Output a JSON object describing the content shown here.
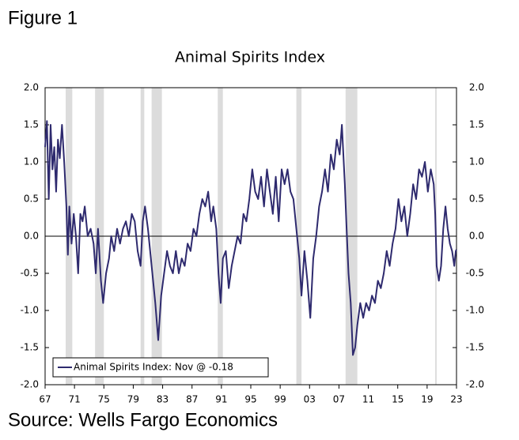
{
  "figure_label": "Figure 1",
  "source": "Source: Wells Fargo Economics",
  "chart_data": {
    "type": "line",
    "title": "Animal Spirits Index",
    "xlim": [
      1967,
      2023
    ],
    "xticks": [
      {
        "value": 1967,
        "label": "67"
      },
      {
        "value": 1971,
        "label": "71"
      },
      {
        "value": 1975,
        "label": "75"
      },
      {
        "value": 1979,
        "label": "79"
      },
      {
        "value": 1983,
        "label": "83"
      },
      {
        "value": 1987,
        "label": "87"
      },
      {
        "value": 1991,
        "label": "91"
      },
      {
        "value": 1995,
        "label": "95"
      },
      {
        "value": 1999,
        "label": "99"
      },
      {
        "value": 2003,
        "label": "03"
      },
      {
        "value": 2007,
        "label": "07"
      },
      {
        "value": 2011,
        "label": "11"
      },
      {
        "value": 2015,
        "label": "15"
      },
      {
        "value": 2019,
        "label": "19"
      },
      {
        "value": 2023,
        "label": "23"
      }
    ],
    "ylim": [
      -2,
      2
    ],
    "yticks": [
      {
        "value": 2,
        "label": "2.0"
      },
      1.5,
      {
        "value": 1,
        "label": "1.0"
      },
      0.5,
      {
        "value": 0,
        "label": "0.0"
      },
      -0.5,
      {
        "value": -1,
        "label": "-1.0"
      },
      -1.5,
      {
        "value": -2,
        "label": "-2.0"
      }
    ],
    "y2lim": [
      -2,
      2
    ],
    "y2ticks": [
      {
        "value": 2,
        "label": "2.0"
      },
      1.5,
      {
        "value": 1,
        "label": "1.0"
      },
      0.5,
      {
        "value": 0,
        "label": "0.0"
      },
      -0.5,
      {
        "value": -1,
        "label": "-1.0"
      },
      -1.5,
      {
        "value": -2,
        "label": "-2.0"
      }
    ],
    "grid": false,
    "legend": "lower-left",
    "recession_color": "#dcdcdc",
    "recessions": [
      [
        1969.8,
        1970.7
      ],
      [
        1973.8,
        1975.0
      ],
      [
        1980.0,
        1980.5
      ],
      [
        1981.5,
        1982.9
      ],
      [
        1990.5,
        1991.2
      ],
      [
        2001.2,
        2001.9
      ],
      [
        2007.9,
        2009.5
      ],
      [
        2020.1,
        2020.3
      ]
    ],
    "x": [
      1967.0,
      1967.25,
      1967.5,
      1967.75,
      1968.0,
      1968.25,
      1968.5,
      1968.75,
      1969.0,
      1969.3,
      1969.6,
      1969.9,
      1970.1,
      1970.3,
      1970.6,
      1970.9,
      1971.2,
      1971.5,
      1971.8,
      1972.1,
      1972.4,
      1972.8,
      1973.2,
      1973.6,
      1973.9,
      1974.2,
      1974.6,
      1974.9,
      1975.3,
      1975.7,
      1976.0,
      1976.4,
      1976.8,
      1977.2,
      1977.6,
      1978.0,
      1978.4,
      1978.8,
      1979.2,
      1979.6,
      1980.0,
      1980.3,
      1980.6,
      1981.0,
      1981.4,
      1981.7,
      1982.0,
      1982.4,
      1982.8,
      1983.2,
      1983.6,
      1984.0,
      1984.4,
      1984.8,
      1985.2,
      1985.6,
      1986.0,
      1986.4,
      1986.8,
      1987.2,
      1987.6,
      1988.0,
      1988.4,
      1988.8,
      1989.2,
      1989.6,
      1989.9,
      1990.3,
      1990.6,
      1990.9,
      1991.2,
      1991.6,
      1992.0,
      1992.4,
      1992.8,
      1993.2,
      1993.6,
      1994.0,
      1994.4,
      1994.8,
      1995.2,
      1995.6,
      1996.0,
      1996.4,
      1996.8,
      1997.2,
      1997.6,
      1998.0,
      1998.4,
      1998.8,
      1999.2,
      1999.6,
      2000.0,
      2000.4,
      2000.8,
      2001.2,
      2001.6,
      2001.9,
      2002.3,
      2002.7,
      2003.1,
      2003.5,
      2003.9,
      2004.3,
      2004.7,
      2005.1,
      2005.5,
      2005.9,
      2006.3,
      2006.7,
      2007.1,
      2007.4,
      2007.8,
      2008.0,
      2008.3,
      2008.6,
      2008.9,
      2009.2,
      2009.5,
      2009.9,
      2010.3,
      2010.7,
      2011.1,
      2011.5,
      2011.9,
      2012.3,
      2012.7,
      2013.1,
      2013.5,
      2013.9,
      2014.3,
      2014.7,
      2015.1,
      2015.5,
      2015.9,
      2016.3,
      2016.7,
      2017.1,
      2017.5,
      2017.9,
      2018.3,
      2018.7,
      2019.1,
      2019.5,
      2019.9,
      2020.1,
      2020.3,
      2020.6,
      2020.9,
      2021.2,
      2021.5,
      2021.8,
      2022.1,
      2022.4,
      2022.7,
      2022.9,
      2023.0
    ],
    "series": [
      {
        "name": "Animal Spirits Index: Nov @ -0.18",
        "color": "#2e2a6e",
        "values": [
          1.2,
          1.55,
          0.5,
          1.5,
          0.9,
          1.2,
          0.6,
          1.3,
          1.05,
          1.5,
          1.0,
          0.4,
          -0.25,
          0.4,
          -0.1,
          0.3,
          0.0,
          -0.5,
          0.3,
          0.2,
          0.4,
          0.0,
          0.1,
          -0.1,
          -0.5,
          0.1,
          -0.6,
          -0.9,
          -0.5,
          -0.3,
          0.0,
          -0.2,
          0.1,
          -0.1,
          0.1,
          0.2,
          0.0,
          0.3,
          0.2,
          -0.2,
          -0.4,
          0.2,
          0.4,
          0.1,
          -0.3,
          -0.6,
          -0.9,
          -1.4,
          -0.8,
          -0.5,
          -0.2,
          -0.4,
          -0.5,
          -0.2,
          -0.5,
          -0.3,
          -0.4,
          -0.1,
          -0.2,
          0.1,
          0.0,
          0.3,
          0.5,
          0.4,
          0.6,
          0.2,
          0.4,
          0.1,
          -0.5,
          -0.9,
          -0.3,
          -0.2,
          -0.7,
          -0.4,
          -0.2,
          0.0,
          -0.1,
          0.3,
          0.2,
          0.5,
          0.9,
          0.6,
          0.5,
          0.8,
          0.4,
          0.9,
          0.6,
          0.3,
          0.8,
          0.2,
          0.9,
          0.7,
          0.9,
          0.6,
          0.5,
          0.1,
          -0.3,
          -0.8,
          -0.2,
          -0.6,
          -1.1,
          -0.3,
          0.0,
          0.4,
          0.6,
          0.9,
          0.6,
          1.1,
          0.9,
          1.3,
          1.1,
          1.5,
          0.7,
          0.2,
          -0.5,
          -0.9,
          -1.6,
          -1.5,
          -1.2,
          -0.9,
          -1.1,
          -0.9,
          -1.0,
          -0.8,
          -0.9,
          -0.6,
          -0.7,
          -0.5,
          -0.2,
          -0.4,
          -0.1,
          0.1,
          0.5,
          0.2,
          0.4,
          0.0,
          0.3,
          0.7,
          0.5,
          0.9,
          0.8,
          1.0,
          0.6,
          0.9,
          0.7,
          0.3,
          -0.4,
          -0.6,
          -0.4,
          0.1,
          0.4,
          0.1,
          -0.1,
          -0.2,
          -0.4,
          -0.2,
          -0.18
        ]
      }
    ]
  }
}
